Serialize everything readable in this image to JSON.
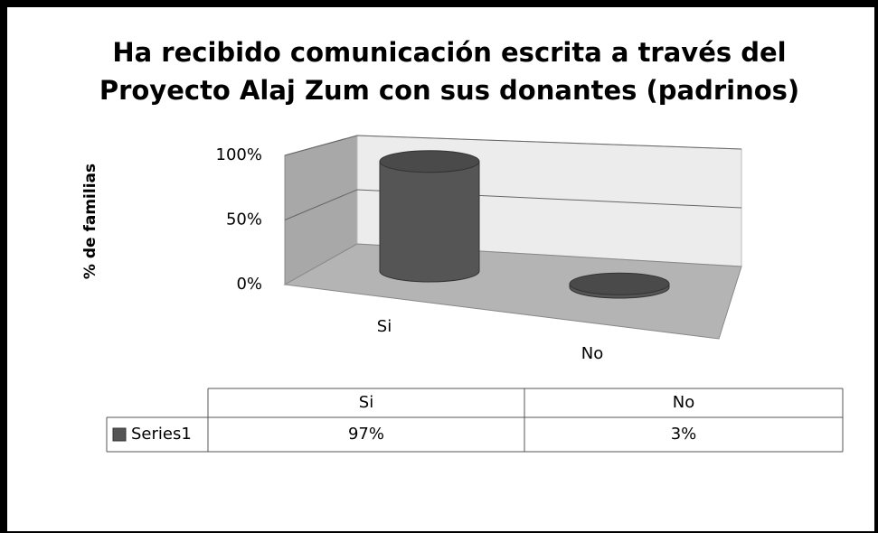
{
  "chart_data": {
    "type": "cylinder",
    "title": [
      "Ha recibido comunicación escrita a través  del",
      "Proyecto Alaj Zum con sus donantes (padrinos)"
    ],
    "y_label": "% de familias",
    "categories": [
      "Si",
      "No"
    ],
    "series": [
      {
        "name": "Series1",
        "color": "#555555",
        "values": [
          97,
          3
        ],
        "value_labels": [
          "97%",
          "3%"
        ]
      }
    ],
    "ylim": [
      0,
      100
    ],
    "yticks": [
      {
        "value": 0,
        "label": "0%"
      },
      {
        "value": 50,
        "label": "50%"
      },
      {
        "value": 100,
        "label": "100%"
      }
    ],
    "grid": true,
    "data_table": true
  }
}
